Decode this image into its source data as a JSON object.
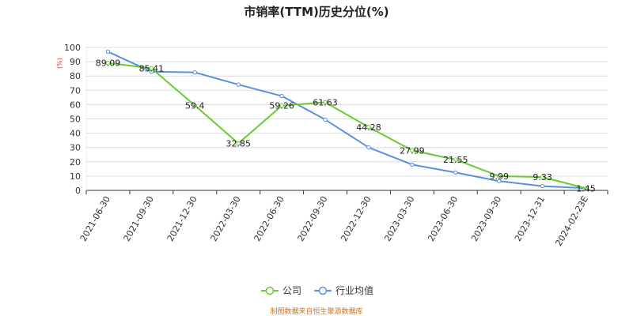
{
  "chart_data": {
    "type": "line",
    "title": "市销率(TTM)历史分位(%)",
    "ylabel": "(%)",
    "xlabel": "",
    "ylim": [
      0,
      100
    ],
    "yticks": [
      0,
      10,
      20,
      30,
      40,
      50,
      60,
      70,
      80,
      90,
      100
    ],
    "grid": true,
    "legend_position": "bottom",
    "categories": [
      "2021-06-30",
      "2021-09-30",
      "2021-12-30",
      "2022-03-30",
      "2022-06-30",
      "2022-09-30",
      "2022-12-30",
      "2023-03-30",
      "2023-06-30",
      "2023-09-30",
      "2023-12-31",
      "2024-02-23E"
    ],
    "series": [
      {
        "name": "公司",
        "color": "#66cc33",
        "values": [
          89.09,
          85.41,
          59.4,
          32.85,
          59.26,
          61.63,
          44.28,
          27.99,
          21.55,
          9.99,
          9.33,
          1.45
        ],
        "labels": [
          "89.09",
          "85.41",
          "59.4",
          "32.85",
          "59.26",
          "61.63",
          "44.28",
          "27.99",
          "21.55",
          "9.99",
          "9.33",
          "1.45"
        ]
      },
      {
        "name": "行业均值",
        "color": "#5b8fe0",
        "values": [
          97,
          83,
          82.5,
          74,
          66,
          49.5,
          30,
          18,
          12.5,
          6.5,
          3,
          1.5
        ]
      }
    ]
  },
  "footer": {
    "source": "制图数据来自恒生聚源数据库"
  }
}
